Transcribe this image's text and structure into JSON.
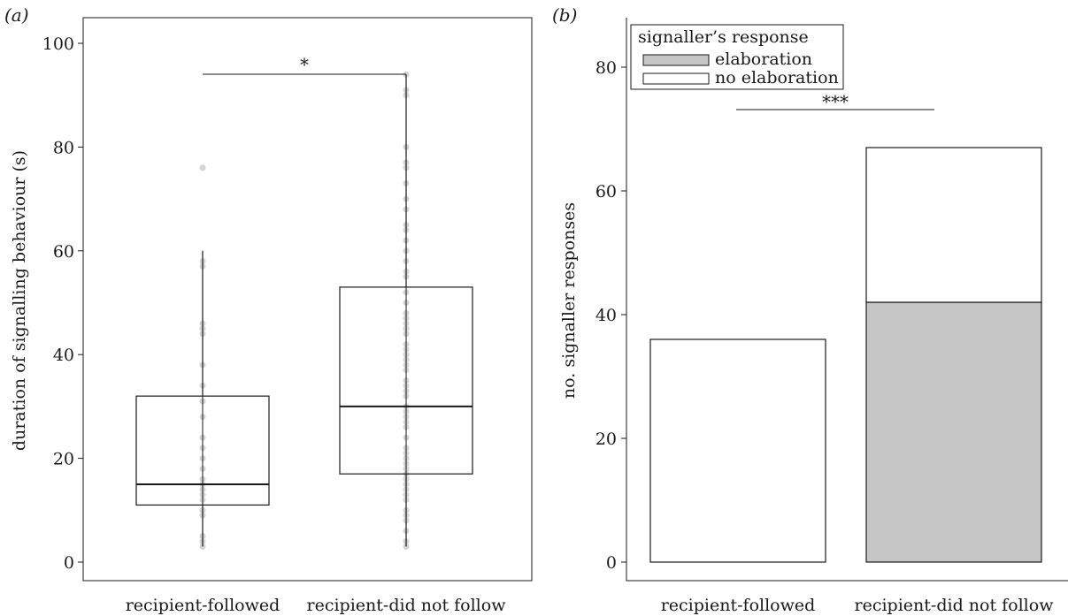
{
  "figure": {
    "panels": [
      "(a)",
      "(b)"
    ]
  },
  "chart_data": [
    {
      "type": "box",
      "panel_label": "(a)",
      "title": "",
      "xlabel": "",
      "ylabel": "duration of signalling behaviour (s)",
      "ylim": [
        0,
        100
      ],
      "yticks": [
        0,
        20,
        40,
        60,
        80,
        100
      ],
      "categories": [
        "recipient-followed",
        "recipient-did not follow"
      ],
      "boxes": [
        {
          "category": "recipient-followed",
          "whisker_low": 3,
          "q1": 11,
          "median": 15,
          "q3": 32,
          "whisker_high": 60,
          "points": [
            3,
            4,
            5,
            5,
            9,
            10,
            12,
            13,
            14,
            15,
            15,
            16,
            18,
            20,
            22,
            24,
            24,
            28,
            31,
            34,
            38,
            44,
            45,
            46,
            57,
            58,
            76
          ]
        },
        {
          "category": "recipient-did not follow",
          "whisker_low": 3,
          "q1": 17,
          "median": 30,
          "q3": 53,
          "whisker_high": 94,
          "points": [
            3,
            4,
            6,
            8,
            9,
            10,
            12,
            13,
            14,
            15,
            16,
            17,
            18,
            19,
            20,
            21,
            22,
            24,
            26,
            27,
            28,
            29,
            30,
            32,
            33,
            34,
            35,
            37,
            38,
            39,
            40,
            41,
            42,
            44,
            45,
            46,
            47,
            48,
            50,
            52,
            55,
            56,
            58,
            60,
            62,
            64,
            65,
            68,
            70,
            73,
            76,
            77,
            80,
            90,
            91,
            94
          ]
        }
      ],
      "significance": "*",
      "grid": false
    },
    {
      "type": "bar",
      "stacked": true,
      "panel_label": "(b)",
      "title": "",
      "xlabel": "",
      "ylabel": "no. signaller responses",
      "ylim": [
        0,
        87
      ],
      "yticks": [
        0,
        20,
        40,
        60,
        80
      ],
      "categories": [
        "recipient-followed",
        "recipient-did not follow"
      ],
      "series": [
        {
          "name": "elaboration",
          "values": [
            0,
            42
          ],
          "color": "#c6c6c6"
        },
        {
          "name": "no elaboration",
          "values": [
            36,
            25
          ],
          "color": "#ffffff"
        }
      ],
      "legend_title": "signaller’s response",
      "legend_position": "top-left",
      "significance": "***",
      "grid": false
    }
  ]
}
